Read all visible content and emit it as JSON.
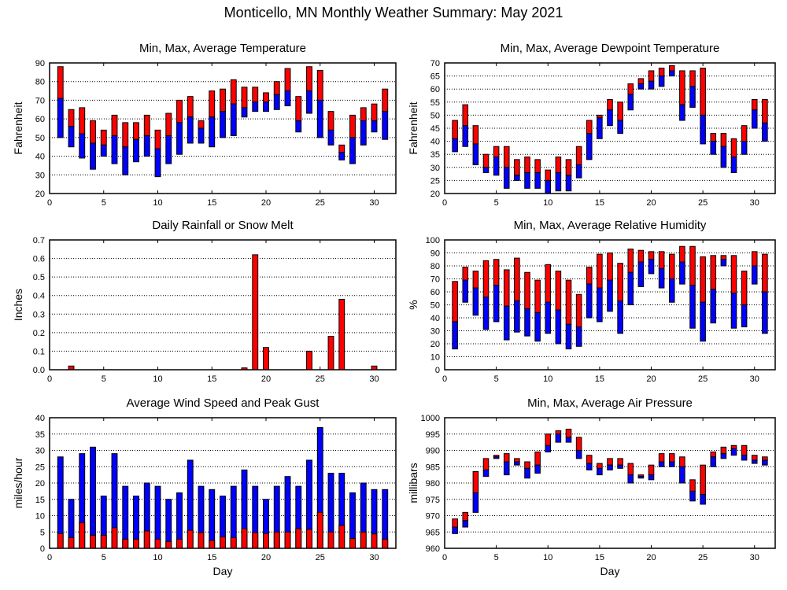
{
  "title": "Monticello, MN Monthly Weather Summary: May 2021",
  "colors": {
    "upper": "#ff0000",
    "lower": "#0000ff",
    "outline": "#000000"
  },
  "chart_data": [
    {
      "id": "temperature",
      "type": "bar",
      "subtype": "floating-range",
      "title": "Min, Max, Average Temperature",
      "xlabel": "",
      "ylabel": "Fahrenheit",
      "xlim": [
        0,
        32
      ],
      "ylim": [
        20,
        90
      ],
      "xticks": [
        0,
        5,
        10,
        15,
        20,
        25,
        30
      ],
      "yticks": [
        20,
        30,
        40,
        50,
        60,
        70,
        80,
        90
      ],
      "grid": true,
      "x": [
        1,
        2,
        3,
        4,
        5,
        6,
        7,
        8,
        9,
        10,
        11,
        12,
        13,
        14,
        15,
        16,
        17,
        18,
        19,
        20,
        21,
        22,
        23,
        24,
        25,
        26,
        27,
        28,
        29,
        30,
        31
      ],
      "min": [
        50,
        45,
        39,
        33,
        40,
        36,
        30,
        37,
        40,
        29,
        36,
        41,
        47,
        47,
        45,
        50,
        51,
        61,
        64,
        64,
        65,
        67,
        53,
        63,
        50,
        46,
        38,
        36,
        46,
        53,
        49
      ],
      "avg": [
        71,
        56,
        52,
        47,
        46,
        51,
        45,
        49,
        51,
        44,
        51,
        58,
        61,
        55,
        61,
        64,
        68,
        66,
        69,
        69,
        73,
        75,
        59,
        75,
        70,
        54,
        42,
        50,
        59,
        59,
        64
      ],
      "max": [
        88,
        65,
        66,
        59,
        54,
        62,
        58,
        58,
        62,
        54,
        63,
        70,
        72,
        59,
        75,
        76,
        81,
        77,
        77,
        74,
        80,
        87,
        72,
        88,
        86,
        64,
        46,
        62,
        66,
        68,
        76
      ]
    },
    {
      "id": "dewpoint",
      "type": "bar",
      "subtype": "floating-range",
      "title": "Min, Max, Average Dewpoint Temperature",
      "xlabel": "",
      "ylabel": "Fahrenheit",
      "xlim": [
        0,
        32
      ],
      "ylim": [
        20,
        70
      ],
      "xticks": [
        0,
        5,
        10,
        15,
        20,
        25,
        30
      ],
      "yticks": [
        20,
        25,
        30,
        35,
        40,
        45,
        50,
        55,
        60,
        65,
        70
      ],
      "grid": true,
      "x": [
        1,
        2,
        3,
        4,
        5,
        6,
        7,
        8,
        9,
        10,
        11,
        12,
        13,
        14,
        15,
        16,
        17,
        18,
        19,
        20,
        21,
        22,
        23,
        24,
        25,
        26,
        27,
        28,
        29,
        30,
        31
      ],
      "min": [
        36,
        38,
        31,
        28,
        27,
        22,
        25,
        22,
        22,
        20,
        21,
        21,
        26,
        33,
        41,
        46,
        43,
        52,
        60,
        60,
        61,
        65,
        48,
        53,
        39,
        35,
        30,
        28,
        35,
        45,
        40
      ],
      "avg": [
        41,
        46,
        39,
        30,
        34,
        30,
        27,
        28,
        28,
        25,
        28,
        27,
        31,
        43,
        49,
        52,
        48,
        58,
        62,
        63,
        65,
        67,
        54,
        61,
        50,
        40,
        38,
        34,
        40,
        52,
        47
      ],
      "max": [
        48,
        54,
        46,
        35,
        38,
        38,
        33,
        34,
        33,
        29,
        34,
        33,
        38,
        48,
        50,
        56,
        55,
        62,
        64,
        67,
        68,
        69,
        67,
        67,
        68,
        43,
        43,
        41,
        46,
        56,
        56
      ]
    },
    {
      "id": "rainfall",
      "type": "bar",
      "title": "Daily Rainfall or Snow Melt",
      "xlabel": "",
      "ylabel": "Inches",
      "xlim": [
        0,
        32
      ],
      "ylim": [
        0,
        0.7
      ],
      "xticks": [
        0,
        5,
        10,
        15,
        20,
        25,
        30
      ],
      "yticks": [
        "0.0",
        "0.1",
        "0.2",
        "0.3",
        "0.4",
        "0.5",
        "0.6",
        "0.7"
      ],
      "grid": true,
      "x": [
        1,
        2,
        3,
        4,
        5,
        6,
        7,
        8,
        9,
        10,
        11,
        12,
        13,
        14,
        15,
        16,
        17,
        18,
        19,
        20,
        21,
        22,
        23,
        24,
        25,
        26,
        27,
        28,
        29,
        30,
        31
      ],
      "values": [
        0,
        0.02,
        0,
        0,
        0,
        0,
        0,
        0,
        0,
        0,
        0,
        0,
        0,
        0,
        0,
        0,
        0,
        0.01,
        0.62,
        0.12,
        0,
        0,
        0,
        0.1,
        0,
        0.18,
        0.38,
        0,
        0,
        0.02,
        0
      ]
    },
    {
      "id": "humidity",
      "type": "bar",
      "subtype": "floating-range",
      "title": "Min, Max, Average Relative Humidity",
      "xlabel": "",
      "ylabel": "%",
      "xlim": [
        0,
        32
      ],
      "ylim": [
        0,
        100
      ],
      "xticks": [
        0,
        5,
        10,
        15,
        20,
        25,
        30
      ],
      "yticks": [
        0,
        10,
        20,
        30,
        40,
        50,
        60,
        70,
        80,
        90,
        100
      ],
      "grid": true,
      "x": [
        1,
        2,
        3,
        4,
        5,
        6,
        7,
        8,
        9,
        10,
        11,
        12,
        13,
        14,
        15,
        16,
        17,
        18,
        19,
        20,
        21,
        22,
        23,
        24,
        25,
        26,
        27,
        28,
        29,
        30,
        31
      ],
      "min": [
        16,
        52,
        42,
        31,
        37,
        23,
        29,
        26,
        22,
        28,
        20,
        16,
        18,
        40,
        37,
        45,
        28,
        50,
        64,
        74,
        63,
        52,
        66,
        32,
        22,
        36,
        80,
        32,
        33,
        66,
        28
      ],
      "avg": [
        37,
        69,
        63,
        56,
        65,
        49,
        53,
        47,
        44,
        52,
        46,
        35,
        33,
        66,
        63,
        69,
        53,
        75,
        83,
        85,
        78,
        70,
        83,
        65,
        52,
        62,
        85,
        59,
        50,
        80,
        60
      ],
      "max": [
        68,
        79,
        76,
        84,
        85,
        77,
        86,
        75,
        69,
        81,
        76,
        69,
        58,
        79,
        89,
        90,
        82,
        93,
        92,
        91,
        91,
        89,
        95,
        95,
        87,
        88,
        88,
        88,
        76,
        91,
        89
      ]
    },
    {
      "id": "wind",
      "type": "bar",
      "subtype": "stacked-overlay",
      "title": "Average Wind Speed and Peak Gust",
      "xlabel": "Day",
      "ylabel": "miles/hour",
      "xlim": [
        0,
        32
      ],
      "ylim": [
        0,
        40
      ],
      "xticks": [
        0,
        5,
        10,
        15,
        20,
        25,
        30
      ],
      "yticks": [
        0,
        5,
        10,
        15,
        20,
        25,
        30,
        35,
        40
      ],
      "grid": true,
      "x": [
        1,
        2,
        3,
        4,
        5,
        6,
        7,
        8,
        9,
        10,
        11,
        12,
        13,
        14,
        15,
        16,
        17,
        18,
        19,
        20,
        21,
        22,
        23,
        24,
        25,
        26,
        27,
        28,
        29,
        30,
        31
      ],
      "series": [
        {
          "name": "Average Wind Speed",
          "color": "#ff0000",
          "values": [
            4.5,
            3.3,
            7.8,
            4,
            4,
            6.3,
            2.8,
            2.8,
            5.3,
            2.8,
            2.1,
            2.8,
            5.5,
            4.8,
            2.4,
            3.5,
            3.3,
            6,
            4.8,
            4.5,
            5,
            5,
            6,
            5.8,
            11,
            5,
            7,
            3,
            5,
            4.4,
            2.8
          ]
        },
        {
          "name": "Peak Gust",
          "color": "#0000ff",
          "values": [
            28,
            15,
            29,
            31,
            16,
            29,
            19,
            16,
            20,
            19,
            15,
            17,
            27,
            19,
            18,
            16,
            19,
            24,
            19,
            15,
            19,
            22,
            19,
            27,
            37,
            23,
            23,
            17,
            20,
            18,
            18
          ]
        }
      ]
    },
    {
      "id": "pressure",
      "type": "bar",
      "subtype": "floating-range",
      "title": "Min, Max, Average Air Pressure",
      "xlabel": "Day",
      "ylabel": "millibars",
      "xlim": [
        0,
        32
      ],
      "ylim": [
        960,
        1000
      ],
      "xticks": [
        0,
        5,
        10,
        15,
        20,
        25,
        30
      ],
      "yticks": [
        960,
        965,
        970,
        975,
        980,
        985,
        990,
        995,
        1000
      ],
      "grid": true,
      "x": [
        1,
        2,
        3,
        4,
        5,
        6,
        7,
        8,
        9,
        10,
        11,
        12,
        13,
        14,
        15,
        16,
        17,
        18,
        19,
        20,
        21,
        22,
        23,
        24,
        25,
        26,
        27,
        28,
        29,
        30,
        31
      ],
      "min": [
        964.5,
        966.5,
        971,
        982,
        987.5,
        982.5,
        985.5,
        981.5,
        983,
        989.5,
        992.5,
        992.5,
        987.5,
        984,
        982.5,
        984,
        984.5,
        980,
        981.5,
        981,
        985,
        985,
        980,
        974.5,
        973.5,
        985,
        987.5,
        988.5,
        987,
        986,
        985.5
      ],
      "avg": [
        966.5,
        968.5,
        977,
        984,
        988,
        986.5,
        986.5,
        984.5,
        985.5,
        991.5,
        995,
        994,
        990,
        986,
        984.5,
        985.5,
        985.5,
        982.5,
        982,
        982.5,
        986.5,
        986.5,
        985,
        977.5,
        976.5,
        988,
        989,
        990.5,
        988.5,
        987,
        987
      ],
      "max": [
        969,
        971,
        983.5,
        987.5,
        988.5,
        989,
        987.5,
        986.5,
        989.5,
        995,
        996,
        996.5,
        994,
        988.5,
        986,
        987.5,
        987.5,
        986,
        982.5,
        985.5,
        989,
        989,
        988,
        981,
        985.5,
        989.5,
        991,
        991.5,
        991.5,
        988.5,
        988
      ]
    }
  ]
}
